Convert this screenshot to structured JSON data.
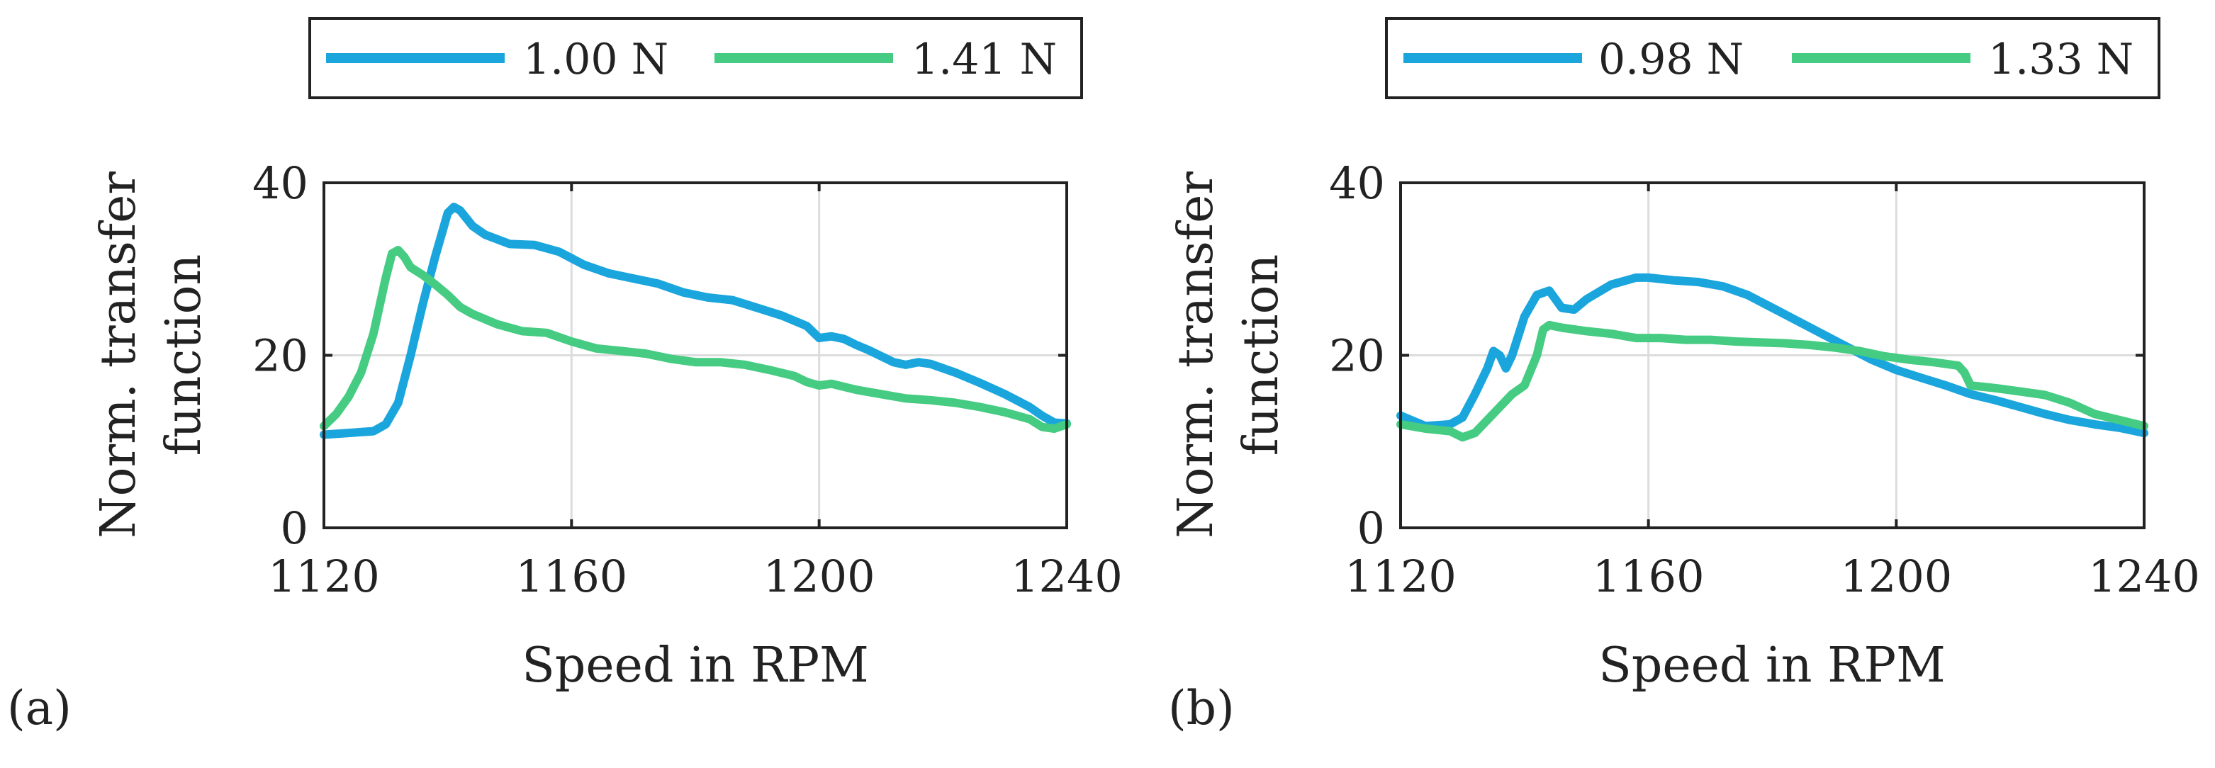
{
  "colors": {
    "blue": "#1aa6dd",
    "green": "#46cc82",
    "axis": "#222222",
    "grid": "#dcdcdc"
  },
  "chart_data": [
    {
      "type": "line",
      "panel_label": "(a)",
      "xlabel": "Speed in RPM",
      "ylabel_line1": "Norm. transfer",
      "ylabel_line2": "function",
      "xlim": [
        1120,
        1240
      ],
      "ylim": [
        0,
        40
      ],
      "xticks": [
        1120,
        1160,
        1200,
        1240
      ],
      "yticks": [
        0,
        20,
        40
      ],
      "grid": true,
      "legend_position": "top",
      "series": [
        {
          "name": "1.00 N",
          "color": "#1aa6dd",
          "x": [
            1120,
            1124,
            1128,
            1130,
            1132,
            1134,
            1136,
            1138,
            1140,
            1141,
            1142,
            1144,
            1146,
            1150,
            1154,
            1158,
            1162,
            1166,
            1170,
            1174,
            1178,
            1182,
            1186,
            1190,
            1194,
            1198,
            1200,
            1202,
            1204,
            1206,
            1208,
            1212,
            1214,
            1216,
            1218,
            1222,
            1226,
            1230,
            1234,
            1236,
            1238,
            1240
          ],
          "y": [
            10.8,
            11.0,
            11.2,
            12.0,
            14.5,
            20.0,
            26.0,
            31.5,
            36.5,
            37.2,
            36.8,
            35.0,
            34.0,
            32.9,
            32.8,
            32.0,
            30.5,
            29.5,
            28.9,
            28.3,
            27.3,
            26.7,
            26.4,
            25.5,
            24.6,
            23.4,
            22.0,
            22.2,
            21.9,
            21.2,
            20.6,
            19.2,
            18.9,
            19.2,
            19.0,
            18.0,
            16.8,
            15.5,
            14.0,
            13.0,
            12.2,
            12.1
          ]
        },
        {
          "name": "1.41 N",
          "color": "#46cc82",
          "x": [
            1120,
            1122,
            1124,
            1126,
            1128,
            1130,
            1131,
            1132,
            1133,
            1134,
            1136,
            1138,
            1140,
            1142,
            1144,
            1148,
            1152,
            1156,
            1160,
            1164,
            1168,
            1172,
            1176,
            1180,
            1184,
            1188,
            1192,
            1196,
            1198,
            1200,
            1202,
            1206,
            1210,
            1214,
            1218,
            1222,
            1226,
            1230,
            1234,
            1236,
            1238,
            1240
          ],
          "y": [
            11.8,
            13.2,
            15.2,
            18.0,
            22.5,
            29.0,
            31.8,
            32.2,
            31.4,
            30.2,
            29.3,
            28.2,
            27.0,
            25.6,
            24.8,
            23.6,
            22.8,
            22.6,
            21.6,
            20.8,
            20.5,
            20.2,
            19.6,
            19.2,
            19.2,
            18.9,
            18.3,
            17.6,
            16.9,
            16.5,
            16.7,
            16.0,
            15.5,
            15.0,
            14.8,
            14.5,
            14.0,
            13.4,
            12.6,
            11.7,
            11.5,
            12.0
          ]
        }
      ]
    },
    {
      "type": "line",
      "panel_label": "(b)",
      "xlabel": "Speed in RPM",
      "ylabel_line1": "Norm. transfer",
      "ylabel_line2": "function",
      "xlim": [
        1120,
        1240
      ],
      "ylim": [
        0,
        40
      ],
      "xticks": [
        1120,
        1160,
        1200,
        1240
      ],
      "yticks": [
        0,
        20,
        40
      ],
      "grid": true,
      "legend_position": "top",
      "series": [
        {
          "name": "0.98 N",
          "color": "#1aa6dd",
          "x": [
            1120,
            1124,
            1128,
            1130,
            1132,
            1134,
            1135,
            1136,
            1137,
            1138,
            1140,
            1142,
            1144,
            1146,
            1148,
            1150,
            1154,
            1158,
            1160,
            1164,
            1168,
            1172,
            1176,
            1180,
            1184,
            1188,
            1192,
            1196,
            1200,
            1204,
            1208,
            1212,
            1216,
            1220,
            1224,
            1228,
            1232,
            1236,
            1240
          ],
          "y": [
            13.0,
            11.8,
            12.0,
            12.8,
            15.5,
            18.5,
            20.5,
            20.0,
            18.5,
            20.0,
            24.5,
            27.0,
            27.5,
            25.5,
            25.3,
            26.5,
            28.2,
            29.0,
            29.0,
            28.7,
            28.5,
            28.0,
            27.0,
            25.5,
            24.0,
            22.5,
            21.0,
            19.5,
            18.3,
            17.4,
            16.5,
            15.5,
            14.8,
            14.0,
            13.2,
            12.5,
            12.0,
            11.6,
            11.0
          ]
        },
        {
          "name": "1.33 N",
          "color": "#46cc82",
          "x": [
            1120,
            1124,
            1128,
            1130,
            1132,
            1134,
            1136,
            1138,
            1140,
            1142,
            1143,
            1144,
            1146,
            1150,
            1154,
            1158,
            1162,
            1166,
            1170,
            1174,
            1178,
            1182,
            1186,
            1190,
            1194,
            1198,
            1202,
            1206,
            1210,
            1211,
            1212,
            1216,
            1220,
            1224,
            1228,
            1232,
            1236,
            1240
          ],
          "y": [
            12.0,
            11.5,
            11.2,
            10.5,
            11.0,
            12.5,
            14.0,
            15.5,
            16.5,
            20.0,
            23.0,
            23.5,
            23.2,
            22.8,
            22.5,
            22.0,
            22.0,
            21.8,
            21.8,
            21.6,
            21.5,
            21.4,
            21.2,
            20.9,
            20.5,
            19.9,
            19.5,
            19.2,
            18.8,
            18.0,
            16.5,
            16.2,
            15.8,
            15.4,
            14.5,
            13.2,
            12.5,
            11.8
          ]
        }
      ]
    }
  ]
}
